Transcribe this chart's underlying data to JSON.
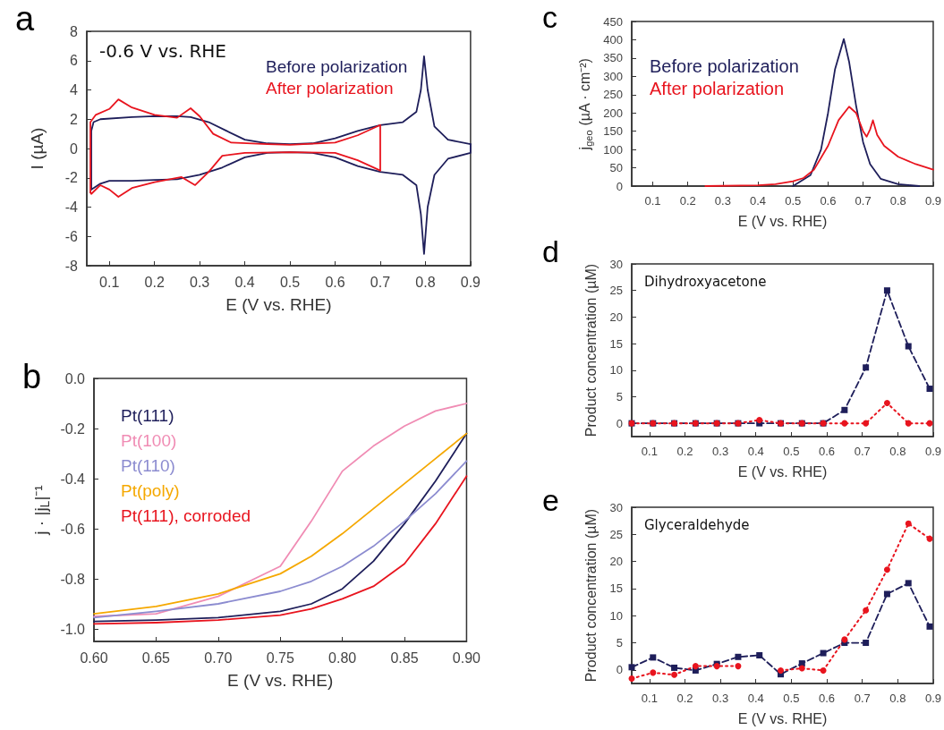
{
  "chart_data": [
    {
      "type": "line",
      "title": "a",
      "xlabel": "E (V vs. RHE)",
      "ylabel": "I (µA)",
      "xlim": [
        0.05,
        0.9
      ],
      "ylim": [
        -8,
        8
      ],
      "xticks": [
        0.1,
        0.2,
        0.3,
        0.4,
        0.5,
        0.6,
        0.7,
        0.8,
        0.9
      ],
      "yticks": [
        -8,
        -6,
        -4,
        -2,
        0,
        2,
        4,
        6,
        8
      ],
      "annotations": [
        "-0.6 V vs. RHE"
      ],
      "series": [
        {
          "name": "Before polarization",
          "color": "#1e1e5a",
          "x": [
            0.06,
            0.06,
            0.065,
            0.08,
            0.15,
            0.2,
            0.25,
            0.28,
            0.32,
            0.36,
            0.4,
            0.45,
            0.5,
            0.55,
            0.6,
            0.65,
            0.7,
            0.75,
            0.78,
            0.79,
            0.797,
            0.805,
            0.82,
            0.85,
            0.9
          ],
          "values": [
            -2.8,
            1.2,
            1.8,
            2.0,
            2.15,
            2.2,
            2.2,
            2.15,
            1.8,
            1.2,
            0.6,
            0.35,
            0.3,
            0.35,
            0.7,
            1.2,
            1.6,
            1.8,
            2.5,
            4,
            6.3,
            4,
            1.5,
            0.6,
            0.3
          ]
        },
        {
          "color": "#1e1e5a",
          "x": [
            0.06,
            0.065,
            0.08,
            0.1,
            0.15,
            0.2,
            0.25,
            0.3,
            0.35,
            0.4,
            0.45,
            0.5,
            0.55,
            0.6,
            0.65,
            0.7,
            0.75,
            0.78,
            0.79,
            0.797,
            0.805,
            0.82,
            0.85,
            0.9,
            0.9
          ],
          "values": [
            -2.8,
            -2.7,
            -2.4,
            -2.2,
            -2.2,
            -2.15,
            -2.1,
            -1.8,
            -1.3,
            -0.6,
            -0.3,
            -0.25,
            -0.3,
            -0.6,
            -1.2,
            -1.6,
            -1.8,
            -2.5,
            -4.5,
            -7.2,
            -4,
            -1.8,
            -0.7,
            -0.3,
            0.3
          ]
        },
        {
          "name": "After polarization",
          "color": "#e8141e",
          "x": [
            0.058,
            0.058,
            0.07,
            0.1,
            0.12,
            0.15,
            0.2,
            0.25,
            0.28,
            0.3,
            0.33,
            0.37,
            0.45,
            0.5,
            0.6,
            0.65,
            0.7,
            0.7
          ],
          "values": [
            -3.0,
            1.8,
            2.3,
            2.7,
            3.35,
            2.8,
            2.3,
            2.1,
            2.75,
            2.2,
            1.0,
            0.4,
            0.3,
            0.25,
            0.4,
            0.9,
            1.6,
            -1.5
          ]
        },
        {
          "color": "#e8141e",
          "x": [
            0.058,
            0.06,
            0.08,
            0.1,
            0.12,
            0.15,
            0.2,
            0.26,
            0.29,
            0.32,
            0.35,
            0.4,
            0.5,
            0.6,
            0.65,
            0.7
          ],
          "values": [
            -3.0,
            -3.1,
            -2.5,
            -2.8,
            -3.3,
            -2.7,
            -2.3,
            -1.95,
            -2.5,
            -1.6,
            -0.5,
            -0.3,
            -0.25,
            -0.3,
            -0.8,
            -1.5
          ]
        }
      ]
    },
    {
      "type": "line",
      "title": "b",
      "xlabel": "E (V vs. RHE)",
      "ylabel": "j · |j$_{L}$|⁻¹",
      "xlim": [
        0.6,
        0.9
      ],
      "ylim": [
        -1.05,
        0
      ],
      "xticks": [
        {
          "value": 0.6,
          "label": "0.60"
        },
        {
          "value": 0.65,
          "label": "0.65"
        },
        {
          "value": 0.7,
          "label": "0.70"
        },
        {
          "value": 0.75,
          "label": "0.75"
        },
        {
          "value": 0.8,
          "label": "0.80"
        },
        {
          "value": 0.85,
          "label": "0.85"
        },
        {
          "value": 0.9,
          "label": "0.90"
        }
      ],
      "yticks": [
        {
          "value": -1,
          "label": "-1.0"
        },
        {
          "value": -0.8,
          "label": "-0.8"
        },
        {
          "value": -0.6,
          "label": "-0.6"
        },
        {
          "value": -0.4,
          "label": "-0.4"
        },
        {
          "value": -0.2,
          "label": "-0.2"
        },
        {
          "value": 0,
          "label": "0.0"
        }
      ],
      "x": [
        0.6,
        0.65,
        0.7,
        0.75,
        0.775,
        0.8,
        0.825,
        0.85,
        0.875,
        0.9
      ],
      "series": [
        {
          "name": "Pt(111)",
          "color": "#1e1e5a",
          "values": [
            -0.97,
            -0.965,
            -0.955,
            -0.93,
            -0.9,
            -0.84,
            -0.73,
            -0.58,
            -0.41,
            -0.22
          ]
        },
        {
          "name": "Pt(100)",
          "color": "#f08cb4",
          "values": [
            -0.95,
            -0.94,
            -0.87,
            -0.75,
            -0.57,
            -0.37,
            -0.27,
            -0.19,
            -0.13,
            -0.1
          ]
        },
        {
          "name": "Pt(110)",
          "color": "#8c8cd0",
          "values": [
            -0.955,
            -0.93,
            -0.9,
            -0.85,
            -0.81,
            -0.75,
            -0.67,
            -0.57,
            -0.46,
            -0.33
          ]
        },
        {
          "name": "Pt(poly)",
          "color": "#f5a800",
          "values": [
            -0.94,
            -0.91,
            -0.86,
            -0.78,
            -0.71,
            -0.62,
            -0.52,
            -0.42,
            -0.32,
            -0.22
          ]
        },
        {
          "name": "Pt(111), corroded",
          "color": "#e8141e",
          "values": [
            -0.98,
            -0.975,
            -0.965,
            -0.945,
            -0.92,
            -0.88,
            -0.83,
            -0.74,
            -0.58,
            -0.39
          ]
        }
      ]
    },
    {
      "type": "line",
      "title": "c",
      "xlabel": "E (V vs. RHE)",
      "ylabel": "j$_{geo}$ (µA · cm⁻²)",
      "xlim": [
        0.04,
        0.9
      ],
      "ylim": [
        0,
        450
      ],
      "xticks": [
        0.1,
        0.2,
        0.3,
        0.4,
        0.5,
        0.6,
        0.7,
        0.8,
        0.9
      ],
      "yticks": [
        0,
        50,
        100,
        150,
        200,
        250,
        300,
        350,
        400,
        450
      ],
      "series": [
        {
          "name": "Before polarization",
          "color": "#1e1e5a",
          "x": [
            0.5,
            0.55,
            0.58,
            0.6,
            0.62,
            0.645,
            0.66,
            0.68,
            0.7,
            0.72,
            0.75,
            0.8,
            0.86
          ],
          "values": [
            0,
            30,
            100,
            200,
            320,
            402,
            340,
            220,
            120,
            60,
            20,
            5,
            0
          ]
        },
        {
          "name": "After polarization",
          "color": "#e8141e",
          "x": [
            0.25,
            0.4,
            0.45,
            0.5,
            0.53,
            0.56,
            0.6,
            0.63,
            0.66,
            0.68,
            0.7,
            0.71,
            0.72,
            0.728,
            0.74,
            0.76,
            0.8,
            0.85,
            0.9
          ],
          "values": [
            0,
            2,
            5,
            13,
            22,
            45,
            110,
            180,
            217,
            200,
            150,
            135,
            155,
            180,
            140,
            110,
            80,
            60,
            45
          ]
        }
      ]
    },
    {
      "type": "line",
      "title": "d",
      "xlabel": "E (V vs. RHE)",
      "ylabel": "Product concentration (µM)",
      "xlim": [
        0.05,
        0.9
      ],
      "ylim": [
        -2.5,
        30
      ],
      "xticks": [
        0.1,
        0.2,
        0.3,
        0.4,
        0.5,
        0.6,
        0.7,
        0.8,
        0.9
      ],
      "yticks": [
        0,
        5,
        10,
        15,
        20,
        25,
        30
      ],
      "annotations": [
        "Dihydroxyacetone"
      ],
      "x": [
        0.05,
        0.11,
        0.17,
        0.23,
        0.29,
        0.35,
        0.41,
        0.47,
        0.53,
        0.59,
        0.65,
        0.71,
        0.77,
        0.83,
        0.89
      ],
      "series": [
        {
          "color": "#1e1e5a",
          "marker": "square",
          "line_style": "dashed",
          "values": [
            0,
            0,
            0,
            0,
            0,
            0,
            0,
            0,
            0,
            0,
            2.5,
            10.5,
            25,
            14.5,
            6.5
          ]
        },
        {
          "color": "#e8141e",
          "marker": "circle",
          "line_style": "dotted",
          "values": [
            0,
            0,
            0,
            0,
            0,
            0,
            0.6,
            0,
            0,
            0,
            0,
            0,
            3.8,
            0,
            0
          ]
        }
      ]
    },
    {
      "type": "line",
      "title": "e",
      "xlabel": "E (V vs. RHE)",
      "ylabel": "Product concentration (µM)",
      "xlim": [
        0.05,
        0.9
      ],
      "ylim": [
        -2.5,
        30
      ],
      "xticks": [
        0.1,
        0.2,
        0.3,
        0.4,
        0.5,
        0.6,
        0.7,
        0.8,
        0.9
      ],
      "yticks": [
        0,
        5,
        10,
        15,
        20,
        25,
        30
      ],
      "annotations": [
        "Glyceraldehyde"
      ],
      "x": [
        0.05,
        0.11,
        0.17,
        0.23,
        0.29,
        0.35,
        0.41,
        0.47,
        0.53,
        0.59,
        0.65,
        0.71,
        0.77,
        0.83,
        0.89
      ],
      "series": [
        {
          "color": "#1e1e5a",
          "marker": "square",
          "line_style": "dashed",
          "values": [
            0.5,
            2.3,
            0.4,
            -0.1,
            1.1,
            2.4,
            2.7,
            -0.8,
            1.2,
            3.1,
            5,
            5,
            14,
            16,
            8
          ]
        },
        {
          "color": "#e8141e",
          "marker": "circle",
          "line_style": "dotted",
          "values": [
            -1.6,
            -0.5,
            -0.9,
            0.7,
            0.7,
            0.7,
            null,
            -0.1,
            0.3,
            -0.1,
            5.6,
            11,
            18.5,
            27,
            24.2
          ]
        }
      ]
    }
  ]
}
